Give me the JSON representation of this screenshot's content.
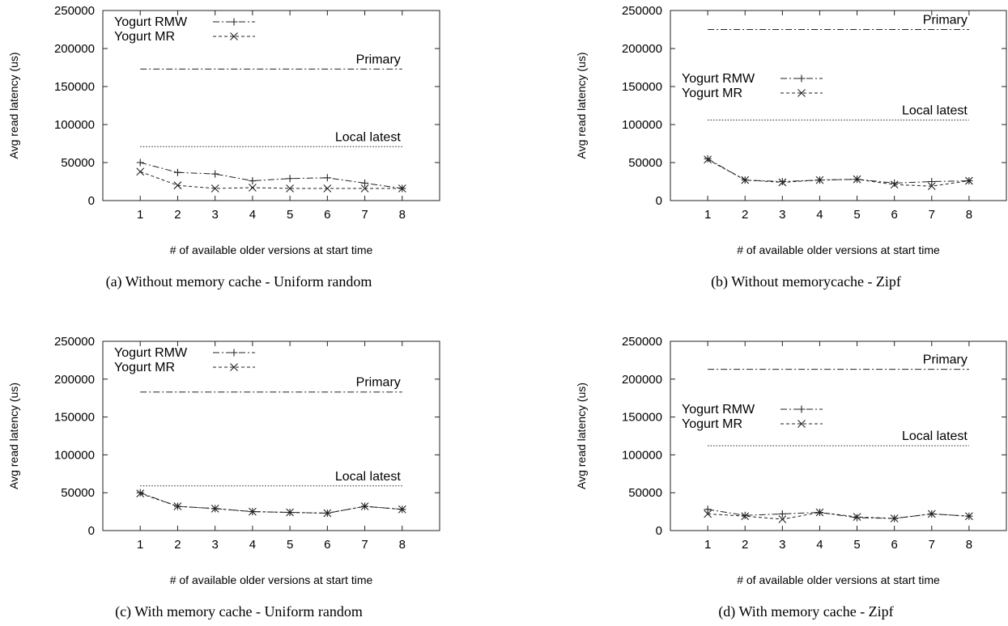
{
  "chart_data": [
    {
      "type": "line",
      "caption": "(a) Without memory cache - Uniform random",
      "xlabel": "# of available older versions at start time",
      "ylabel": "Avg read latency (us)",
      "x": [
        1,
        2,
        3,
        4,
        5,
        6,
        7,
        8
      ],
      "xlim": [
        0,
        9
      ],
      "ylim": [
        0,
        250000
      ],
      "yticks": [
        0,
        50000,
        100000,
        150000,
        200000,
        250000
      ],
      "legend_position": "top-left",
      "series": [
        {
          "name": "Yogurt RMW",
          "style": "dashdot",
          "marker": "plus",
          "values": [
            50000,
            37000,
            35000,
            26000,
            29000,
            30000,
            23000,
            16000
          ]
        },
        {
          "name": "Yogurt MR",
          "style": "dashed",
          "marker": "cross",
          "values": [
            38000,
            20000,
            16000,
            17000,
            16000,
            16000,
            16000,
            16000
          ]
        }
      ],
      "reference_lines": [
        {
          "label": "Primary",
          "value": 173000,
          "style": "dashdot"
        },
        {
          "label": "Local latest",
          "value": 71000,
          "style": "dotted"
        }
      ]
    },
    {
      "type": "line",
      "caption": "(b) Without memorycache - Zipf",
      "xlabel": "# of available older versions at start time",
      "ylabel": "Avg read latency (us)",
      "x": [
        1,
        2,
        3,
        4,
        5,
        6,
        7,
        8
      ],
      "xlim": [
        0,
        9
      ],
      "ylim": [
        0,
        250000
      ],
      "yticks": [
        0,
        50000,
        100000,
        150000,
        200000,
        250000
      ],
      "legend_position": "middle-left",
      "series": [
        {
          "name": "Yogurt RMW",
          "style": "dashdot",
          "marker": "plus",
          "values": [
            55000,
            27000,
            25000,
            27000,
            28000,
            23000,
            25000,
            26000
          ]
        },
        {
          "name": "Yogurt MR",
          "style": "dashed",
          "marker": "cross",
          "values": [
            54000,
            27000,
            24000,
            27000,
            28000,
            21000,
            19000,
            26000
          ]
        }
      ],
      "reference_lines": [
        {
          "label": "Primary",
          "value": 225000,
          "style": "dashdot"
        },
        {
          "label": "Local latest",
          "value": 106000,
          "style": "dotted"
        }
      ]
    },
    {
      "type": "line",
      "caption": "(c) With memory cache - Uniform random",
      "xlabel": "# of available older versions at start time",
      "ylabel": "Avg read latency (us)",
      "x": [
        1,
        2,
        3,
        4,
        5,
        6,
        7,
        8
      ],
      "xlim": [
        0,
        9
      ],
      "ylim": [
        0,
        250000
      ],
      "yticks": [
        0,
        50000,
        100000,
        150000,
        200000,
        250000
      ],
      "legend_position": "top-left",
      "series": [
        {
          "name": "Yogurt RMW",
          "style": "dashdot",
          "marker": "plus",
          "values": [
            50000,
            32000,
            29000,
            25000,
            24000,
            23000,
            32000,
            28000
          ]
        },
        {
          "name": "Yogurt MR",
          "style": "dashed",
          "marker": "cross",
          "values": [
            49000,
            32000,
            29000,
            25000,
            24000,
            23000,
            32000,
            28000
          ]
        }
      ],
      "reference_lines": [
        {
          "label": "Primary",
          "value": 183000,
          "style": "dashdot"
        },
        {
          "label": "Local latest",
          "value": 59000,
          "style": "dotted"
        }
      ]
    },
    {
      "type": "line",
      "caption": "(d) With memory cache - Zipf",
      "xlabel": "# of available older versions at start time",
      "ylabel": "Avg read latency (us)",
      "x": [
        1,
        2,
        3,
        4,
        5,
        6,
        7,
        8
      ],
      "xlim": [
        0,
        9
      ],
      "ylim": [
        0,
        250000
      ],
      "yticks": [
        0,
        50000,
        100000,
        150000,
        200000,
        250000
      ],
      "legend_position": "middle-left",
      "series": [
        {
          "name": "Yogurt RMW",
          "style": "dashdot",
          "marker": "plus",
          "values": [
            28000,
            20000,
            22000,
            24000,
            17000,
            16000,
            22000,
            19000
          ]
        },
        {
          "name": "Yogurt MR",
          "style": "dashed",
          "marker": "cross",
          "values": [
            22000,
            19000,
            15000,
            24000,
            18000,
            16000,
            22000,
            19000
          ]
        }
      ],
      "reference_lines": [
        {
          "label": "Primary",
          "value": 213000,
          "style": "dashdot"
        },
        {
          "label": "Local latest",
          "value": 112000,
          "style": "dotted"
        }
      ]
    }
  ]
}
